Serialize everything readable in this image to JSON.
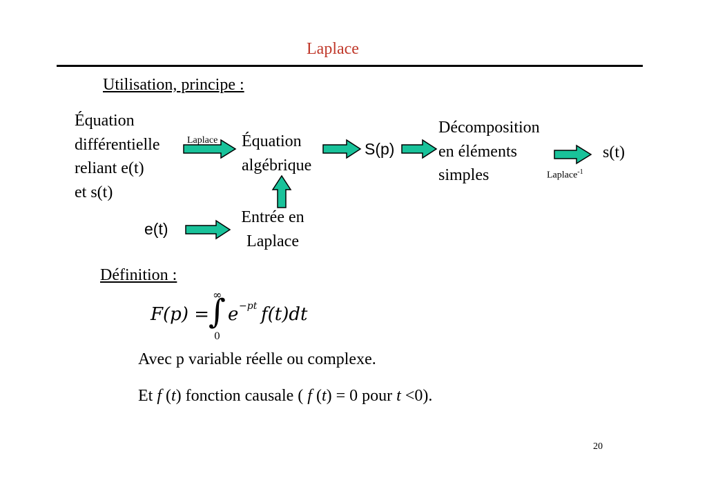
{
  "title": "Laplace",
  "section1": "Utilisation, principe :",
  "equation_diff": {
    "lines": [
      "Équation",
      "différentielle",
      "reliant e(t)",
      "et s(t)"
    ]
  },
  "laplace_label": "Laplace",
  "equation_alg": {
    "lines": [
      "Équation",
      "algébrique"
    ]
  },
  "sp": "S(p)",
  "decomposition": {
    "lines": [
      "Décomposition",
      "en éléments",
      "simples"
    ]
  },
  "st": "s(t)",
  "inverse_label": {
    "base": "Laplace",
    "sup": "-1"
  },
  "et": "e(t)",
  "entree": {
    "lines": [
      "Entrée en",
      "Laplace"
    ]
  },
  "section2": "Définition :",
  "formula": {
    "lhs": "F(p) = ",
    "upper": "∞",
    "lower": "0",
    "exp_base": "e",
    "exp_sup": "−pt",
    "rest": "f(t)dt"
  },
  "line1": "Avec p variable réelle ou complexe.",
  "line2": {
    "a": "Et ",
    "f1": "f",
    "b": " (",
    "t1": "t",
    "c": ") fonction causale ( ",
    "f2": "f",
    "d": " (",
    "t2": "t",
    "e": ") = 0 pour ",
    "t3": "t",
    "g": " <0)."
  },
  "page_number": "20",
  "colors": {
    "title": "#c0392b",
    "arrow_fill": "#19c29a",
    "arrow_stroke": "#000000"
  }
}
